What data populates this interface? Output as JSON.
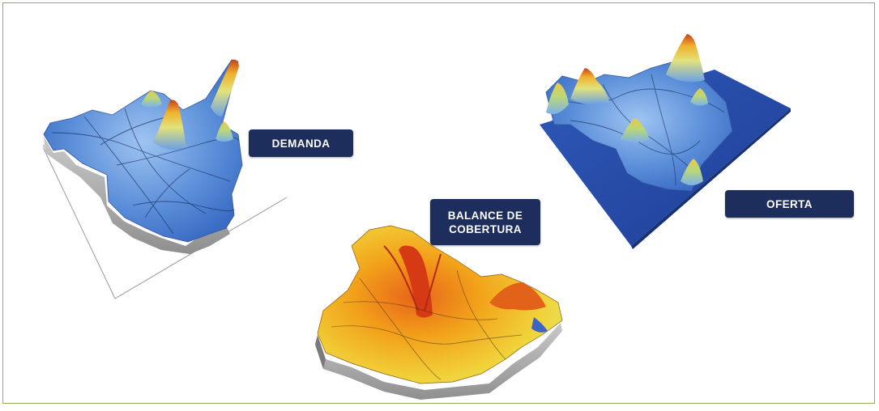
{
  "figure": {
    "labels": {
      "demanda": "DEMANDA",
      "balance_line1": "BALANCE DE",
      "balance_line2": "COBERTURA",
      "oferta": "OFERTA"
    },
    "colors": {
      "label_background": "#1d2d5c",
      "frame_border": "#8cae5b",
      "demand_surface": "#5b8fd9",
      "supply_base": "#2649a8",
      "balance_surface": "#f2a21a"
    }
  }
}
